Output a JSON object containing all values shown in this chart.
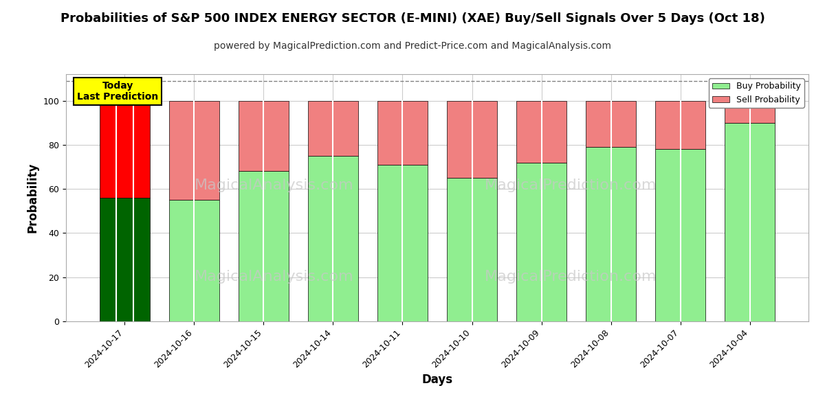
{
  "title": "Probabilities of S&P 500 INDEX ENERGY SECTOR (E-MINI) (XAE) Buy/Sell Signals Over 5 Days (Oct 18)",
  "subtitle": "powered by MagicalPrediction.com and Predict-Price.com and MagicalAnalysis.com",
  "xlabel": "Days",
  "ylabel": "Probability",
  "categories": [
    "2024-10-17",
    "2024-10-16",
    "2024-10-15",
    "2024-10-14",
    "2024-10-11",
    "2024-10-10",
    "2024-10-09",
    "2024-10-08",
    "2024-10-07",
    "2024-10-04"
  ],
  "buy_values": [
    56,
    55,
    68,
    75,
    71,
    65,
    72,
    79,
    78,
    90
  ],
  "sell_values": [
    44,
    45,
    32,
    25,
    29,
    35,
    28,
    21,
    22,
    10
  ],
  "today_buy_color": "#006400",
  "today_sell_color": "#FF0000",
  "buy_color": "#90EE90",
  "sell_color": "#F08080",
  "today_annotation_bg": "#FFFF00",
  "today_annotation_text": "Today\nLast Prediction",
  "ylim": [
    0,
    112
  ],
  "yticks": [
    0,
    20,
    40,
    60,
    80,
    100
  ],
  "dashed_line_y": 109,
  "background_color": "#ffffff",
  "grid_color": "#cccccc",
  "title_fontsize": 13,
  "subtitle_fontsize": 10,
  "axis_label_fontsize": 12,
  "tick_fontsize": 9,
  "bar_width": 0.72,
  "watermark_color": "#c8c8c8"
}
